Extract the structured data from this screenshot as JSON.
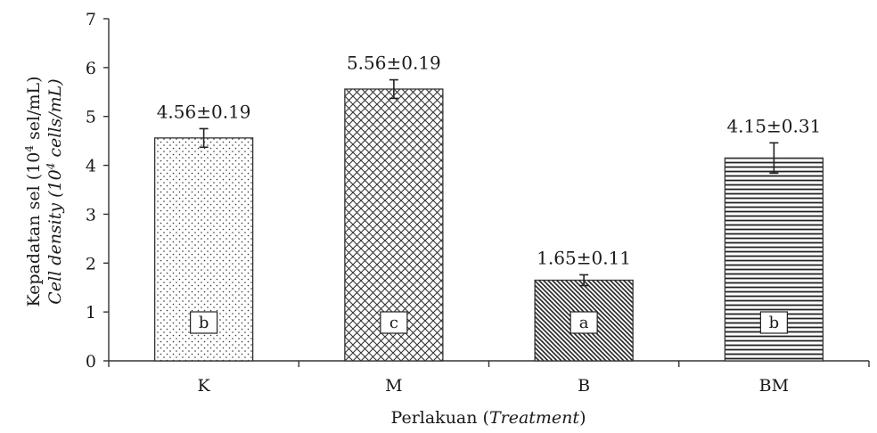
{
  "chart_data": {
    "type": "bar",
    "categories": [
      "K",
      "M",
      "B",
      "BM"
    ],
    "values": [
      4.56,
      5.56,
      1.65,
      4.15
    ],
    "errors": [
      0.19,
      0.19,
      0.11,
      0.31
    ],
    "value_labels": [
      "4.56±0.19",
      "5.56±0.19",
      "1.65±0.11",
      "4.15±0.31"
    ],
    "group_letters": [
      "b",
      "c",
      "a",
      "b"
    ],
    "patterns": [
      "dots",
      "crosshatch",
      "diagonal",
      "horizontal"
    ],
    "ylim": [
      0,
      7
    ],
    "yticks": [
      "0",
      "1",
      "2",
      "3",
      "4",
      "5",
      "6",
      "7"
    ],
    "xlabel": {
      "main": "Perlakuan (",
      "italic": "Treatment",
      "close": ")"
    },
    "ylabel": {
      "line1_pre": "Kepadatan sel (10",
      "line1_sup": "4",
      "line1_post": " sel/mL)",
      "line2_pre": "Cell density (10",
      "line2_sup": "4",
      "line2_post": " cells/mL)"
    },
    "grid": false,
    "legend": "none"
  }
}
